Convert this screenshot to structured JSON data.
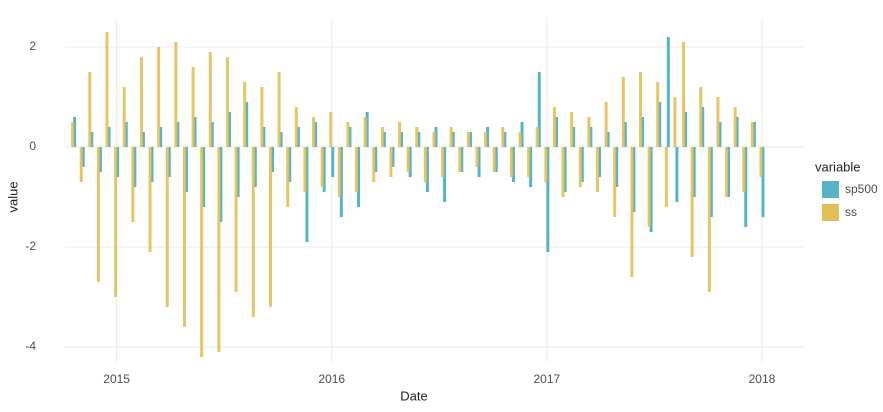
{
  "chart_data": {
    "type": "bar",
    "x_label": "Date",
    "y_label": "value",
    "legend_title": "variable",
    "x": [
      2014.8,
      2014.84,
      2014.88,
      2014.92,
      2014.96,
      2015.0,
      2015.04,
      2015.08,
      2015.12,
      2015.16,
      2015.2,
      2015.24,
      2015.28,
      2015.32,
      2015.36,
      2015.4,
      2015.44,
      2015.48,
      2015.52,
      2015.56,
      2015.6,
      2015.64,
      2015.68,
      2015.72,
      2015.76,
      2015.8,
      2015.84,
      2015.88,
      2015.92,
      2015.96,
      2016.0,
      2016.04,
      2016.08,
      2016.12,
      2016.16,
      2016.2,
      2016.24,
      2016.28,
      2016.32,
      2016.36,
      2016.4,
      2016.44,
      2016.48,
      2016.52,
      2016.56,
      2016.6,
      2016.64,
      2016.68,
      2016.72,
      2016.76,
      2016.8,
      2016.84,
      2016.88,
      2016.92,
      2016.96,
      2017.0,
      2017.04,
      2017.08,
      2017.12,
      2017.16,
      2017.2,
      2017.24,
      2017.28,
      2017.32,
      2017.36,
      2017.4,
      2017.44,
      2017.48,
      2017.52,
      2017.56,
      2017.6,
      2017.64,
      2017.68,
      2017.72,
      2017.76,
      2017.8,
      2017.84,
      2017.88,
      2017.92,
      2017.96,
      2018.0
    ],
    "series": [
      {
        "name": "sp500",
        "color": "#56b4c6",
        "values": [
          0.6,
          -0.4,
          0.3,
          -0.5,
          0.4,
          -0.6,
          0.5,
          -0.8,
          0.3,
          -0.7,
          0.4,
          -0.6,
          0.5,
          -0.9,
          0.6,
          -1.2,
          0.5,
          -1.5,
          0.7,
          -1.0,
          0.9,
          -0.8,
          0.4,
          -0.5,
          0.3,
          -0.7,
          0.4,
          -1.9,
          0.5,
          -0.9,
          -0.6,
          -1.4,
          0.4,
          -1.2,
          0.7,
          -0.5,
          0.3,
          -0.4,
          0.3,
          -0.6,
          0.3,
          -0.9,
          0.4,
          -1.1,
          0.3,
          -0.5,
          0.3,
          -0.6,
          0.4,
          -0.5,
          0.3,
          -0.7,
          0.5,
          -0.8,
          1.5,
          -2.1,
          0.6,
          -0.9,
          0.4,
          -0.7,
          0.4,
          -0.6,
          0.3,
          -0.8,
          0.5,
          -1.3,
          0.6,
          -1.7,
          0.9,
          2.2,
          -1.1,
          0.7,
          -1.0,
          0.8,
          -1.4,
          0.5,
          -1.0,
          0.6,
          -1.6,
          0.5,
          -1.4
        ]
      },
      {
        "name": "ss",
        "color": "#e2bf55",
        "values": [
          0.5,
          -0.7,
          1.5,
          -2.7,
          2.3,
          -3.0,
          1.2,
          -1.5,
          1.8,
          -2.1,
          2.0,
          -3.2,
          2.1,
          -3.6,
          1.6,
          -4.2,
          1.9,
          -4.1,
          1.8,
          -2.9,
          1.3,
          -3.4,
          1.2,
          -3.2,
          1.5,
          -1.2,
          0.8,
          -0.9,
          0.6,
          -0.8,
          0.7,
          -1.0,
          0.5,
          -0.9,
          0.6,
          -0.7,
          0.4,
          -0.6,
          0.5,
          -0.5,
          0.4,
          -0.7,
          0.3,
          -0.6,
          0.4,
          -0.5,
          0.3,
          -0.4,
          0.3,
          -0.5,
          0.4,
          -0.6,
          0.3,
          -0.6,
          0.4,
          -0.7,
          0.8,
          -1.0,
          0.7,
          -0.8,
          0.6,
          -0.9,
          0.9,
          -1.4,
          1.4,
          -2.6,
          1.5,
          -1.6,
          1.3,
          -1.2,
          1.0,
          2.1,
          -2.2,
          1.2,
          -2.9,
          1.0,
          -1.0,
          0.8,
          -0.9,
          0.5,
          -0.6
        ]
      }
    ],
    "xlim": [
      2014.76,
      2018.2
    ],
    "xticks": [
      2015,
      2016,
      2017,
      2018
    ],
    "ylim": [
      -4.3,
      2.58
    ],
    "yticks": [
      2,
      0,
      -2,
      -4
    ],
    "grid": true
  }
}
